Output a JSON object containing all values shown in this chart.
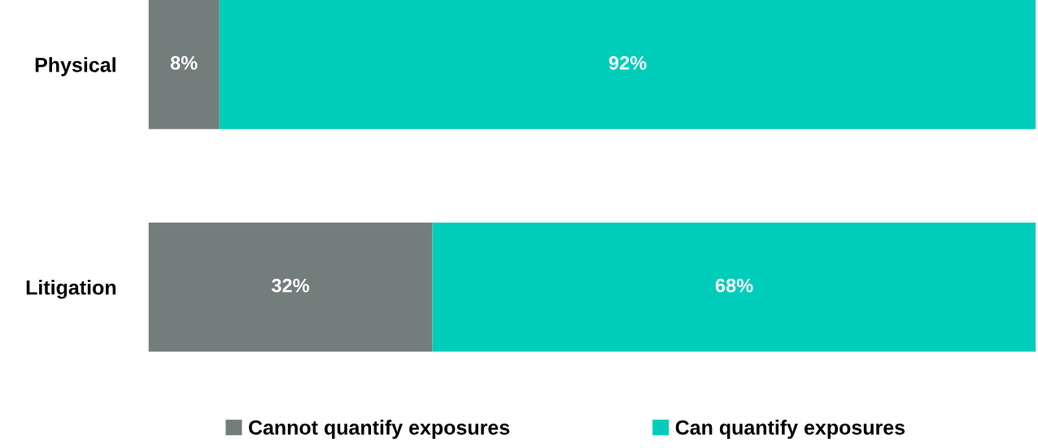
{
  "chart_data": {
    "type": "bar",
    "orientation": "horizontal",
    "stacked": true,
    "categories": [
      "Physical",
      "Litigation"
    ],
    "series": [
      {
        "name": "Cannot quantify exposures",
        "color": "#737d7b",
        "values": [
          8,
          32
        ],
        "value_labels": [
          "8%",
          "32%"
        ]
      },
      {
        "name": "Can quantify exposures",
        "color": "#00cdb9",
        "values": [
          92,
          68
        ],
        "value_labels": [
          "92%",
          "68%"
        ]
      }
    ],
    "xlim": [
      0,
      100
    ],
    "tick_labels": "y",
    "grid": false,
    "legend": "bottom"
  }
}
